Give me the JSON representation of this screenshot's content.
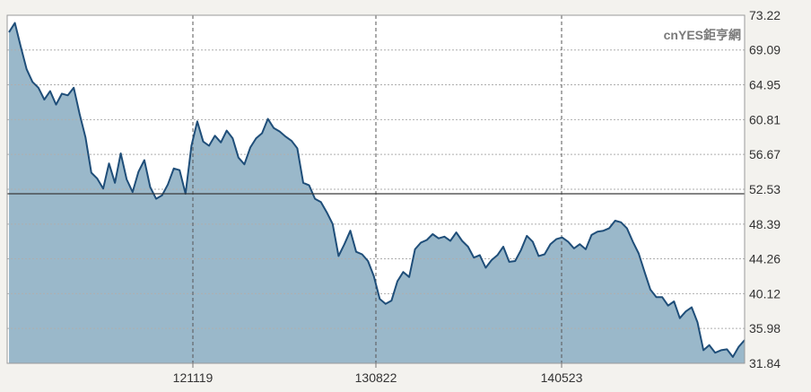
{
  "watermark": "cnYES鉅亨網",
  "colors": {
    "background": "#f3f2ee",
    "plot_bg": "#ffffff",
    "area_fill": "#9ab8ca",
    "line": "#1f4e79",
    "grid_h": "#aeaeae",
    "grid_v": "#555555",
    "axis_text": "#333333",
    "watermark": "#7a7a7a"
  },
  "chart_data": {
    "type": "area",
    "x_ticks": [
      "121119",
      "130822",
      "140523"
    ],
    "y_ticks": [
      73.22,
      69.09,
      64.95,
      60.81,
      56.67,
      52.53,
      48.39,
      44.26,
      40.12,
      35.98,
      31.84
    ],
    "ylim": [
      31.84,
      73.22
    ],
    "reference_line": 52.0,
    "grid": true,
    "values": [
      71.2,
      72.3,
      69.5,
      66.8,
      65.3,
      64.6,
      63.2,
      64.2,
      62.6,
      63.9,
      63.7,
      64.6,
      61.5,
      58.7,
      54.5,
      53.8,
      52.6,
      55.6,
      53.3,
      56.8,
      53.7,
      52.2,
      54.6,
      56.0,
      52.8,
      51.4,
      51.8,
      53.1,
      55.0,
      54.8,
      52.0,
      57.7,
      60.6,
      58.2,
      57.7,
      58.9,
      58.1,
      59.5,
      58.6,
      56.3,
      55.5,
      57.5,
      58.6,
      59.2,
      60.9,
      59.8,
      59.4,
      58.8,
      58.3,
      57.4,
      53.3,
      53.0,
      51.4,
      51.0,
      49.8,
      48.4,
      44.6,
      46.0,
      47.6,
      45.1,
      44.8,
      44.0,
      42.2,
      39.5,
      38.9,
      39.3,
      41.6,
      42.7,
      42.1,
      45.4,
      46.2,
      46.5,
      47.2,
      46.7,
      46.9,
      46.4,
      47.4,
      46.4,
      45.7,
      44.4,
      44.7,
      43.2,
      44.1,
      44.7,
      45.7,
      43.9,
      44.0,
      45.3,
      47.0,
      46.3,
      44.6,
      44.8,
      46.0,
      46.6,
      46.8,
      46.3,
      45.5,
      46.0,
      45.4,
      47.1,
      47.5,
      47.6,
      47.9,
      48.8,
      48.6,
      47.9,
      46.3,
      44.9,
      42.7,
      40.6,
      39.7,
      39.7,
      38.7,
      39.2,
      37.2,
      38.0,
      38.5,
      36.7,
      33.4,
      34.0,
      33.1,
      33.4,
      33.5,
      32.6,
      33.8,
      34.6
    ]
  }
}
